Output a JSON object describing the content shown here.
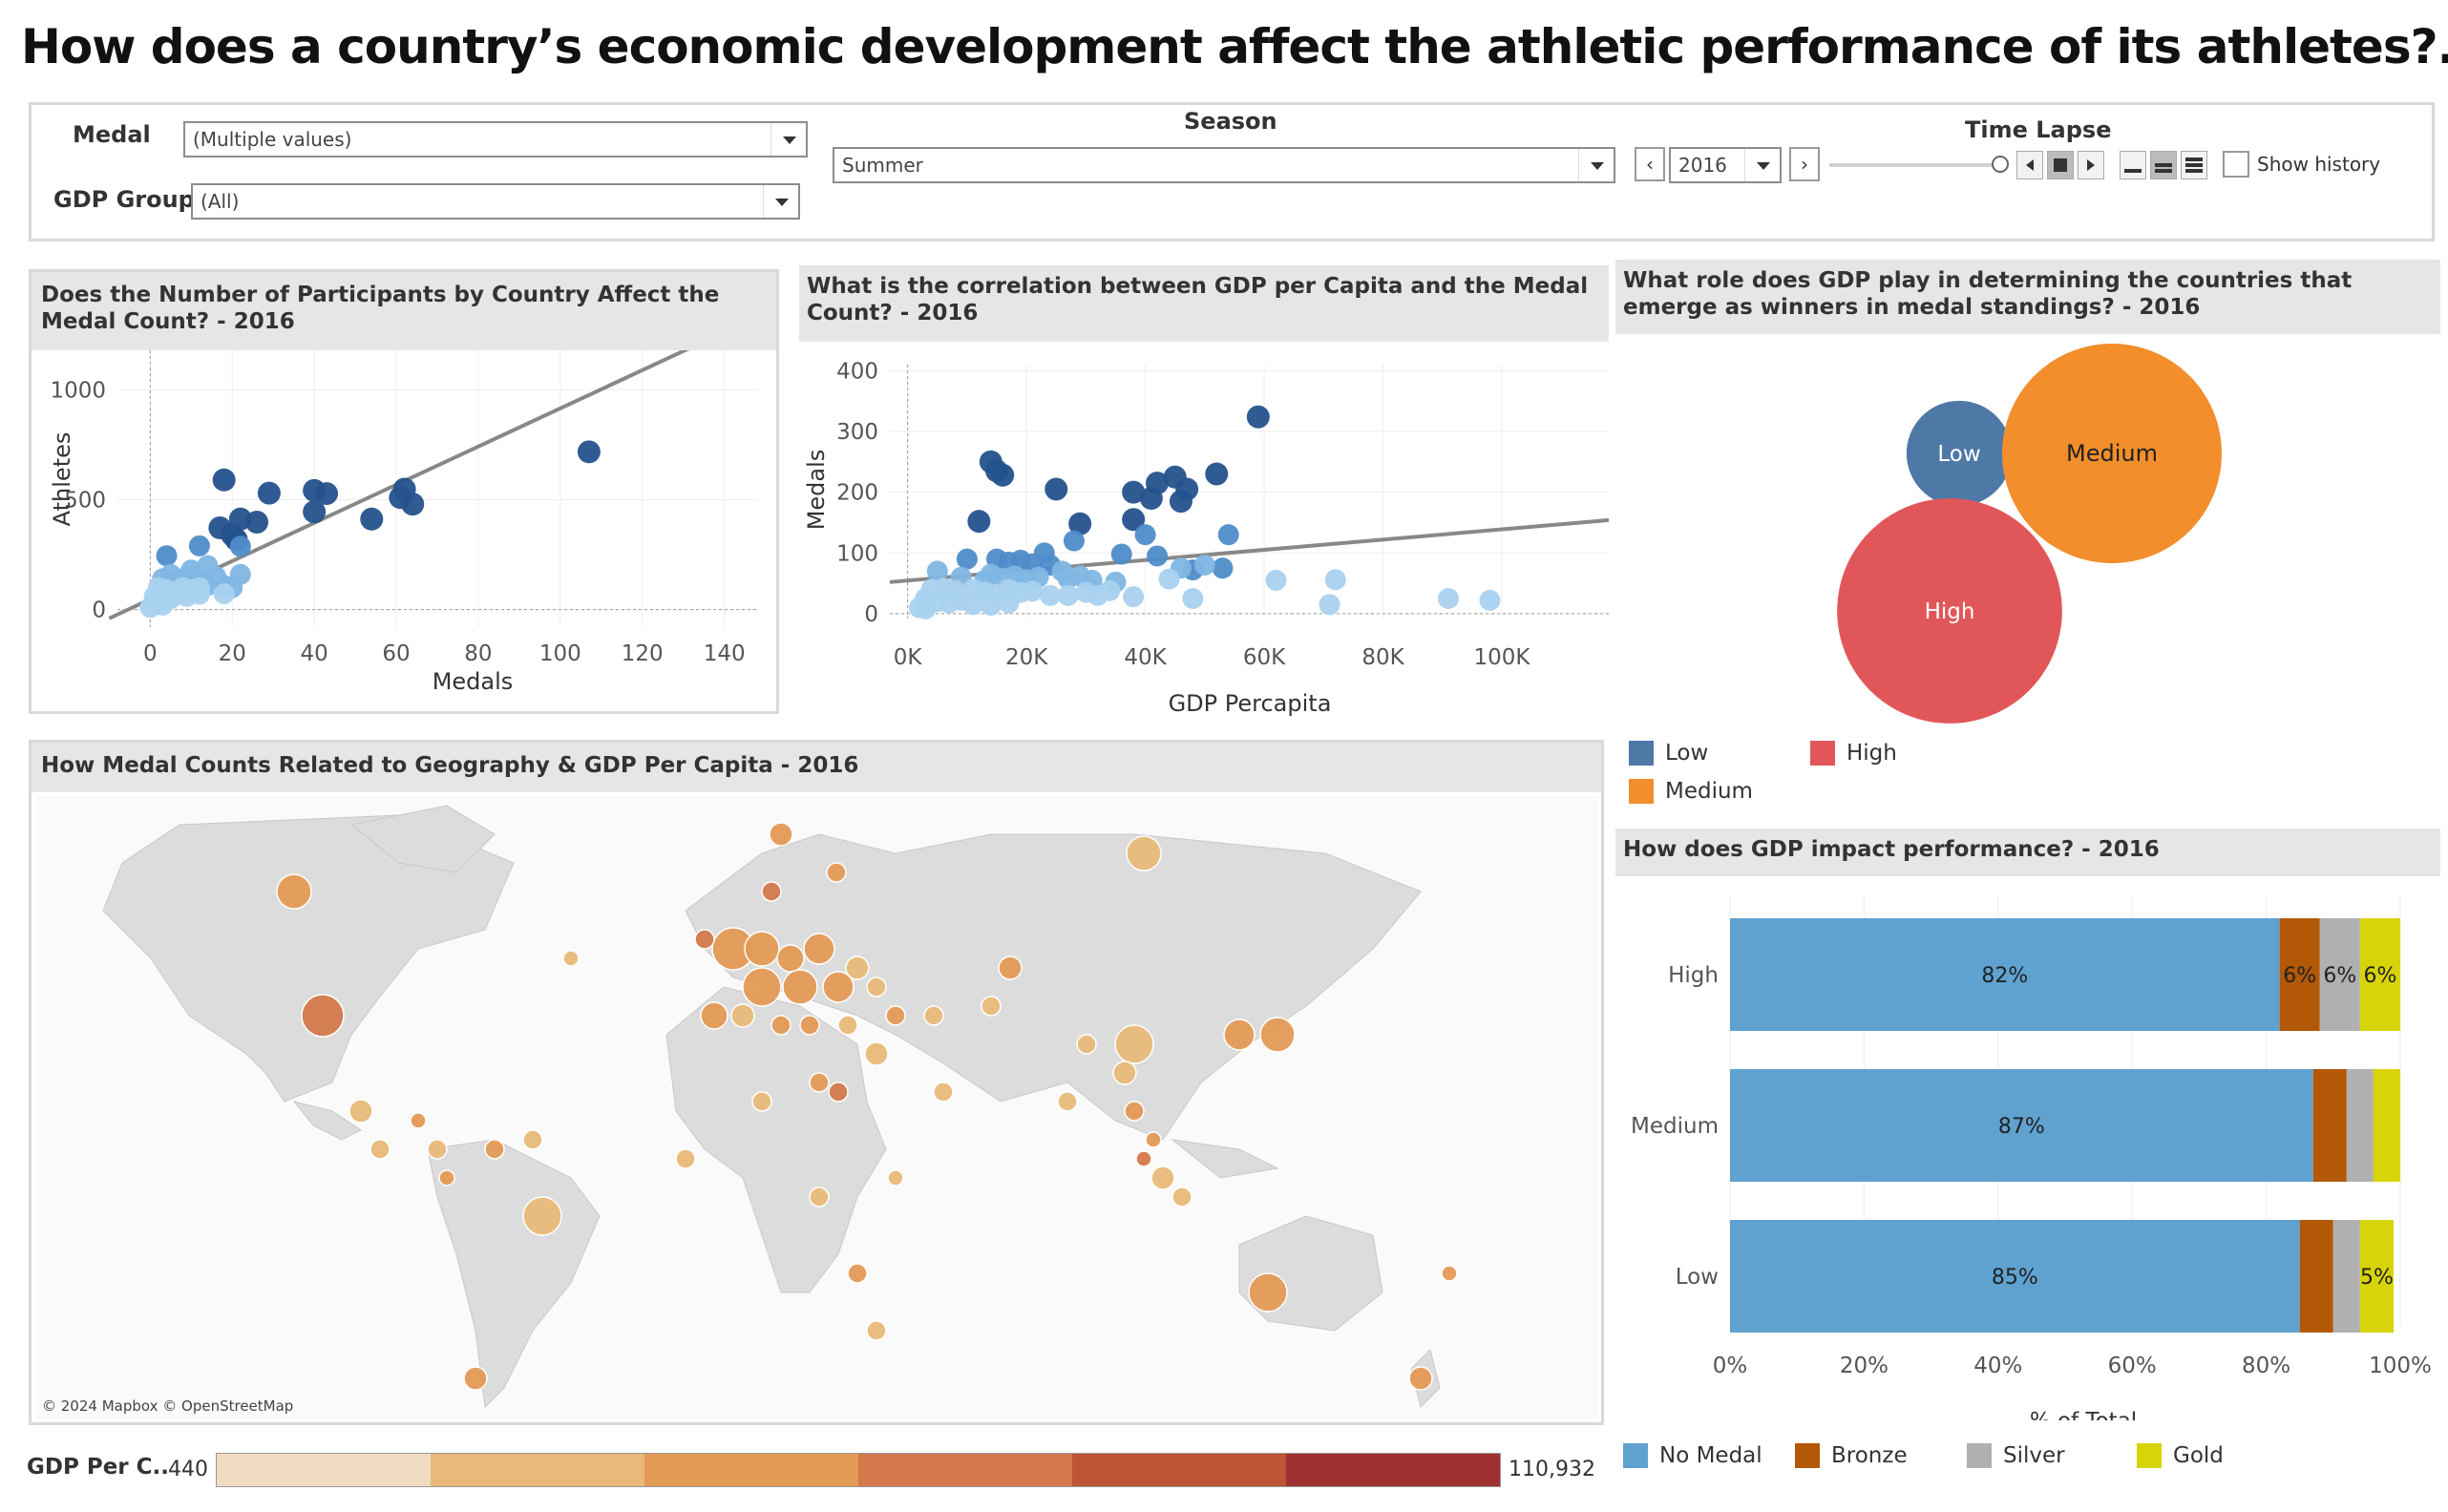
{
  "title": "How does a country’s economic development affect the athletic performance of its athletes?..",
  "filters": {
    "medal_label": "Medal",
    "medal_value": "(Multiple values)",
    "gdp_group_label": "GDP Group",
    "gdp_group_value": "(All)",
    "season_label": "Season",
    "season_value": "Summer",
    "time_lapse_label": "Time Lapse",
    "year_value": "2016",
    "show_history_label": "Show history"
  },
  "panels": {
    "participants": "Does the Number of Participants by Country Affect the Medal Count? - 2016",
    "correlation": "What is the correlation between GDP per Capita and the Medal Count? - 2016",
    "role": "What role does GDP play in determining the countries that emerge as winners in medal standings? - 2016",
    "map": "How Medal Counts Related to Geography & GDP Per Capita  - 2016",
    "impact": "How does GDP impact performance? - 2016"
  },
  "map_credit": "© 2024 Mapbox © OpenStreetMap",
  "gdp_legend": {
    "label": "GDP Per C..",
    "min": "440",
    "max": "110,932",
    "colors": [
      "#f0dcc0",
      "#e8b978",
      "#e39a55",
      "#d3784b",
      "#bd5436",
      "#9e302f"
    ]
  },
  "bubble_legend": [
    {
      "name": "Low",
      "color": "#4e79a7"
    },
    {
      "name": "High",
      "color": "#e15759"
    },
    {
      "name": "Medium",
      "color": "#f28e2b"
    }
  ],
  "stack_legend": [
    {
      "name": "No Medal",
      "color": "#5fa2d0"
    },
    {
      "name": "Bronze",
      "color": "#b35806"
    },
    {
      "name": "Silver",
      "color": "#b0b0b0"
    },
    {
      "name": "Gold",
      "color": "#d8d40a"
    }
  ],
  "chart_data": [
    {
      "type": "scatter",
      "title": "Does the Number of Participants by Country Affect the Medal Count? - 2016",
      "xlabel": "Medals",
      "ylabel": "Athletes",
      "xlim": [
        -8,
        148
      ],
      "ylim": [
        -80,
        1180
      ],
      "xticks": [
        0,
        20,
        40,
        60,
        80,
        100,
        120,
        140
      ],
      "yticks": [
        0,
        500,
        1000
      ],
      "trend": [
        [
          -10,
          -40
        ],
        [
          135,
          1220
        ]
      ],
      "points": [
        [
          107,
          718,
          3
        ],
        [
          62,
          548,
          3
        ],
        [
          61,
          510,
          3
        ],
        [
          64,
          480,
          3
        ],
        [
          54,
          412,
          3
        ],
        [
          40,
          542,
          3
        ],
        [
          43,
          528,
          3
        ],
        [
          40,
          445,
          3
        ],
        [
          29,
          530,
          3
        ],
        [
          26,
          398,
          3
        ],
        [
          22,
          412,
          3
        ],
        [
          18,
          590,
          3
        ],
        [
          17,
          372,
          3
        ],
        [
          20,
          340,
          3
        ],
        [
          21,
          318,
          3
        ],
        [
          22,
          288,
          2
        ],
        [
          12,
          290,
          2
        ],
        [
          4,
          245,
          2
        ],
        [
          10,
          180,
          1
        ],
        [
          14,
          200,
          1
        ],
        [
          16,
          150,
          1
        ],
        [
          18,
          110,
          1
        ],
        [
          20,
          100,
          1
        ],
        [
          22,
          160,
          1
        ],
        [
          3,
          140,
          1
        ],
        [
          5,
          160,
          1
        ],
        [
          7,
          120,
          1
        ],
        [
          9,
          150,
          1
        ],
        [
          12,
          130,
          1
        ],
        [
          14,
          110,
          1
        ],
        [
          2,
          100,
          0
        ],
        [
          4,
          90,
          0
        ],
        [
          6,
          80,
          0
        ],
        [
          8,
          100,
          0
        ],
        [
          10,
          90,
          0
        ],
        [
          12,
          100,
          0
        ],
        [
          1,
          60,
          0
        ],
        [
          2,
          40,
          0
        ],
        [
          3,
          70,
          0
        ],
        [
          5,
          50,
          0
        ],
        [
          7,
          70,
          0
        ],
        [
          9,
          60,
          0
        ],
        [
          12,
          70,
          0
        ],
        [
          18,
          72,
          0
        ],
        [
          1,
          30,
          0
        ],
        [
          3,
          20,
          0
        ],
        [
          0,
          10,
          0
        ],
        [
          2,
          50,
          0
        ]
      ]
    },
    {
      "type": "scatter",
      "title": "What is the correlation between GDP per Capita and the Medal Count? - 2016",
      "xlabel": "GDP Percapita",
      "ylabel": "Medals",
      "xlim": [
        -3000,
        118000
      ],
      "ylim": [
        -8,
        410
      ],
      "xticks": [
        "0K",
        "20K",
        "40K",
        "60K",
        "80K",
        "100K"
      ],
      "yticks": [
        0,
        100,
        200,
        300,
        400
      ],
      "trend": [
        [
          -3000,
          52
        ],
        [
          118000,
          154
        ]
      ],
      "points": [
        [
          59000,
          324,
          3
        ],
        [
          14000,
          250,
          3
        ],
        [
          15000,
          235,
          3
        ],
        [
          16000,
          228,
          3
        ],
        [
          45000,
          225,
          3
        ],
        [
          52000,
          230,
          3
        ],
        [
          42000,
          215,
          3
        ],
        [
          38000,
          200,
          3
        ],
        [
          47000,
          205,
          3
        ],
        [
          41000,
          190,
          3
        ],
        [
          46000,
          185,
          3
        ],
        [
          25000,
          205,
          3
        ],
        [
          12000,
          152,
          3
        ],
        [
          38000,
          155,
          3
        ],
        [
          29000,
          148,
          3
        ],
        [
          54000,
          130,
          2
        ],
        [
          40000,
          130,
          2
        ],
        [
          28000,
          120,
          2
        ],
        [
          36000,
          98,
          2
        ],
        [
          42000,
          95,
          2
        ],
        [
          53000,
          75,
          2
        ],
        [
          48000,
          72,
          2
        ],
        [
          23000,
          100,
          2
        ],
        [
          10000,
          90,
          2
        ],
        [
          15000,
          90,
          2
        ],
        [
          17000,
          85,
          2
        ],
        [
          19000,
          88,
          2
        ],
        [
          21000,
          82,
          2
        ],
        [
          24000,
          80,
          2
        ],
        [
          50000,
          80,
          1
        ],
        [
          46000,
          75,
          1
        ],
        [
          26000,
          70,
          1
        ],
        [
          5000,
          70,
          1
        ],
        [
          9000,
          60,
          1
        ],
        [
          13000,
          55,
          1
        ],
        [
          14000,
          65,
          1
        ],
        [
          16000,
          58,
          1
        ],
        [
          18000,
          62,
          1
        ],
        [
          20000,
          56,
          1
        ],
        [
          22000,
          60,
          1
        ],
        [
          27000,
          58,
          1
        ],
        [
          29000,
          62,
          1
        ],
        [
          31000,
          55,
          1
        ],
        [
          35000,
          52,
          1
        ],
        [
          62000,
          55,
          0
        ],
        [
          72000,
          56,
          0
        ],
        [
          44000,
          57,
          0
        ],
        [
          48000,
          25,
          0
        ],
        [
          32000,
          30,
          0
        ],
        [
          38000,
          28,
          0
        ],
        [
          4000,
          40,
          0
        ],
        [
          6000,
          42,
          0
        ],
        [
          8000,
          38,
          0
        ],
        [
          11000,
          40,
          0
        ],
        [
          13000,
          36,
          0
        ],
        [
          15000,
          32,
          0
        ],
        [
          17000,
          40,
          0
        ],
        [
          19000,
          35,
          0
        ],
        [
          21000,
          37,
          0
        ],
        [
          24000,
          30,
          0
        ],
        [
          27000,
          30,
          0
        ],
        [
          30000,
          35,
          0
        ],
        [
          34000,
          38,
          0
        ],
        [
          3000,
          25,
          0
        ],
        [
          5000,
          20,
          0
        ],
        [
          7000,
          18,
          0
        ],
        [
          9000,
          22,
          0
        ],
        [
          11000,
          15,
          0
        ],
        [
          14000,
          14,
          0
        ],
        [
          17000,
          18,
          0
        ],
        [
          2000,
          10,
          0
        ],
        [
          3000,
          8,
          0
        ],
        [
          91000,
          25,
          0
        ],
        [
          98000,
          22,
          0
        ],
        [
          71000,
          15,
          0
        ]
      ]
    },
    {
      "type": "bubble",
      "title": "What role does GDP play in determining the countries that emerge as winners in medal standings? - 2016",
      "bubbles": [
        {
          "label": "Low",
          "size": 0.23,
          "color": "#4e79a7"
        },
        {
          "label": "Medium",
          "size": 1.0,
          "color": "#f28e2b"
        },
        {
          "label": "High",
          "size": 1.05,
          "color": "#e15759"
        }
      ]
    },
    {
      "type": "bar",
      "stacked": true,
      "title": "How does GDP impact performance? - 2016",
      "xlabel": "% of Total",
      "categories": [
        "High",
        "Medium",
        "Low"
      ],
      "xticks": [
        "0%",
        "20%",
        "40%",
        "60%",
        "80%",
        "100%"
      ],
      "series": [
        {
          "name": "No Medal",
          "values": [
            82,
            87,
            85
          ]
        },
        {
          "name": "Bronze",
          "values": [
            6,
            5,
            5
          ]
        },
        {
          "name": "Silver",
          "values": [
            6,
            4,
            4
          ]
        },
        {
          "name": "Gold",
          "values": [
            6,
            4,
            5
          ]
        }
      ],
      "labels": {
        "High": [
          "82%",
          "6%",
          "6%",
          "6%"
        ],
        "Medium": [
          "87%",
          "",
          "",
          ""
        ],
        "Low": [
          "85%",
          "",
          "",
          "5%"
        ]
      }
    }
  ]
}
